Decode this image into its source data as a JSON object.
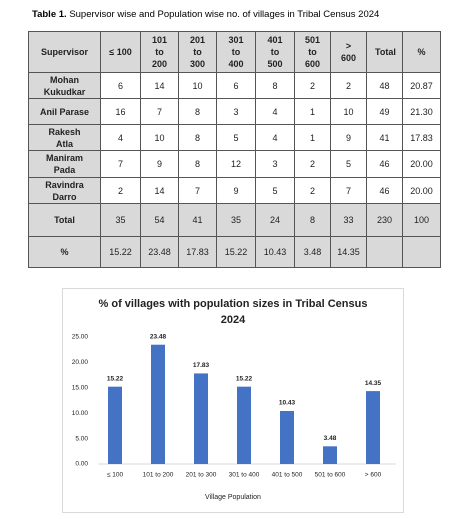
{
  "table": {
    "caption_label": "Table 1.",
    "caption_text": "Supervisor wise and Population wise no. of villages in Tribal Census 2024",
    "header": [
      "Supervisor",
      "≤ 100",
      "101 to 200",
      "201 to 300",
      "301 to 400",
      "401 to 500",
      "501 to 600",
      "> 600",
      "Total",
      "%"
    ],
    "rows": [
      [
        "Mohan Kukudkar",
        "6",
        "14",
        "10",
        "6",
        "8",
        "2",
        "2",
        "48",
        "20.87"
      ],
      [
        "Anil Parase",
        "16",
        "7",
        "8",
        "3",
        "4",
        "1",
        "10",
        "49",
        "21.30"
      ],
      [
        "Rakesh Atla",
        "4",
        "10",
        "8",
        "5",
        "4",
        "1",
        "9",
        "41",
        "17.83"
      ],
      [
        "Maniram Pada",
        "7",
        "9",
        "8",
        "12",
        "3",
        "2",
        "5",
        "46",
        "20.00"
      ],
      [
        "Ravindra Darro",
        "2",
        "14",
        "7",
        "9",
        "5",
        "2",
        "7",
        "46",
        "20.00"
      ],
      [
        "Total",
        "35",
        "54",
        "41",
        "35",
        "24",
        "8",
        "33",
        "230",
        "100"
      ],
      [
        "%",
        "15.22",
        "23.48",
        "17.83",
        "15.22",
        "10.43",
        "3.48",
        "14.35"
      ]
    ]
  },
  "chart_data": {
    "type": "bar",
    "title": "% of villages with population sizes in Tribal Census 2024",
    "x_label": "Village Population",
    "categories": [
      "≤ 100",
      "101 to 200",
      "201 to 300",
      "301 to 400",
      "401 to 500",
      "501 to 600",
      "> 600"
    ],
    "values": [
      15.22,
      23.48,
      17.83,
      15.22,
      10.43,
      3.48,
      14.35
    ],
    "color": "#4472c4",
    "ylim": [
      0,
      25
    ],
    "yticks": [
      {
        "value": 0,
        "label": "0.00"
      },
      {
        "value": 5,
        "label": "5.00"
      },
      {
        "value": 10,
        "label": "10.00"
      },
      {
        "value": 15,
        "label": "15.00"
      },
      {
        "value": 20,
        "label": "20.00"
      },
      {
        "value": 25,
        "label": "25.00"
      }
    ],
    "grid": false
  }
}
